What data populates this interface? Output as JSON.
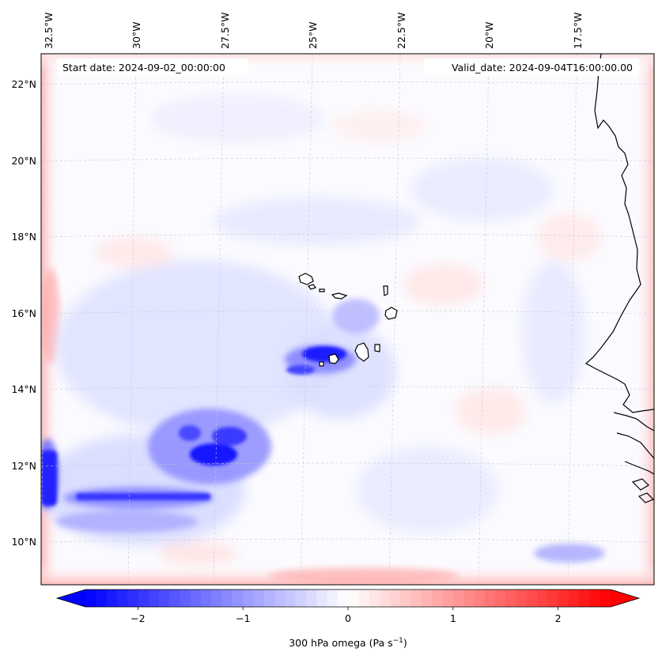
{
  "header": {
    "start_date": "Start date: 2024-09-02_00:00:00",
    "valid_date": "Valid_date: 2024-09-04T16:00:00.00"
  },
  "map": {
    "lon_labels": [
      "32.5°W",
      "30°W",
      "27.5°W",
      "25°W",
      "22.5°W",
      "20°W",
      "17.5°W"
    ],
    "lat_labels": [
      "22°N",
      "20°N",
      "18°N",
      "16°N",
      "14°N",
      "12°N",
      "10°N"
    ],
    "gridlines": true,
    "field": "300 hPa omega",
    "colormap": "bwr",
    "features": [
      {
        "name": "west-african-coastline"
      },
      {
        "name": "cape-verde-islands"
      }
    ]
  },
  "colorbar": {
    "tick_labels": [
      "−2",
      "−1",
      "0",
      "1",
      "2"
    ],
    "tick_values": [
      -2,
      -1,
      0,
      1,
      2
    ],
    "range": [
      -2.5,
      2.5
    ],
    "extend": "both",
    "label_text": "300 hPa omega (Pa s",
    "label_exp": "−1",
    "label_close": ")",
    "colors": {
      "min": "#0000ff",
      "mid": "#ffffff",
      "max": "#ff0000"
    }
  }
}
